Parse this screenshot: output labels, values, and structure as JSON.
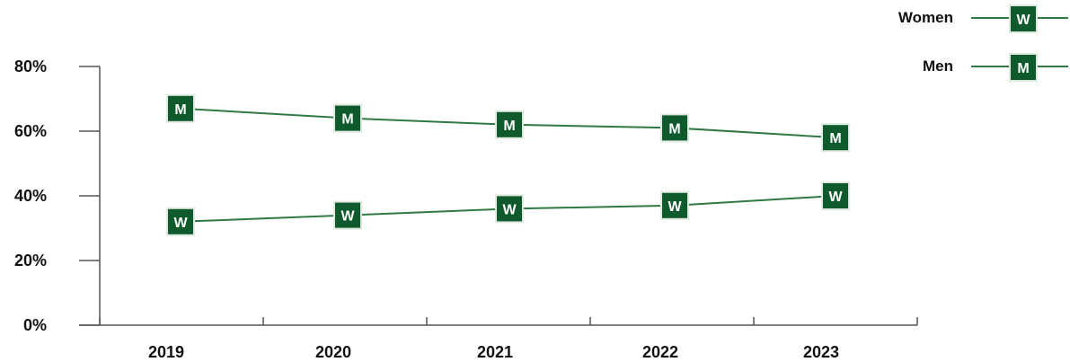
{
  "chart_data": {
    "type": "line",
    "title": "",
    "xlabel": "",
    "ylabel": "",
    "categories": [
      "2019",
      "2020",
      "2021",
      "2022",
      "2023"
    ],
    "ylim": [
      0,
      80
    ],
    "yticks": [
      0,
      20,
      40,
      60,
      80
    ],
    "ytick_labels": [
      "0%",
      "20%",
      "40%",
      "60%",
      "80%"
    ],
    "grid": false,
    "legend_position": "top-right",
    "series": [
      {
        "name": "Women",
        "marker_letter": "W",
        "values": [
          32,
          34,
          36,
          37,
          40
        ]
      },
      {
        "name": "Men",
        "marker_letter": "M",
        "values": [
          67,
          64,
          62,
          61,
          58
        ]
      }
    ],
    "colors": {
      "line": "#2f7a44",
      "marker_fill": "#0f5a2c",
      "marker_border": "#dfe9e0",
      "axis": "#555555"
    }
  }
}
